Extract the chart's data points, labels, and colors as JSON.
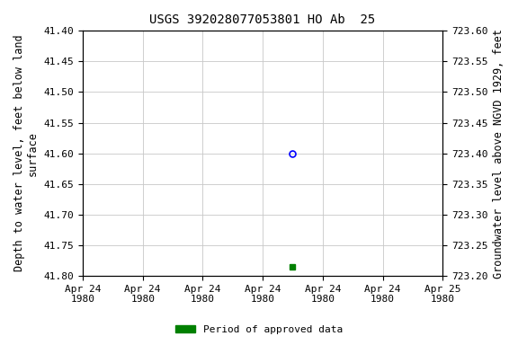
{
  "title": "USGS 392028077053801 HO Ab  25",
  "ylabel_left": "Depth to water level, feet below land\nsurface",
  "ylabel_right": "Groundwater level above NGVD 1929, feet",
  "ylim_left": [
    41.8,
    41.4
  ],
  "ylim_right": [
    723.2,
    723.6
  ],
  "yticks_left": [
    41.4,
    41.45,
    41.5,
    41.55,
    41.6,
    41.65,
    41.7,
    41.75,
    41.8
  ],
  "yticks_right": [
    723.6,
    723.55,
    723.5,
    723.45,
    723.4,
    723.35,
    723.3,
    723.25,
    723.2
  ],
  "data_point_x": 3.5,
  "data_point_y_depth": 41.6,
  "data_point_color": "#0000ff",
  "data_point_marker": "o",
  "data_point_markersize": 5,
  "approved_point_x": 3.5,
  "approved_point_y_depth": 41.785,
  "approved_point_color": "#008000",
  "approved_point_marker": "s",
  "approved_point_markersize": 4,
  "xlim": [
    0,
    6
  ],
  "xtick_positions": [
    0,
    1,
    2,
    3,
    4,
    5,
    6
  ],
  "xtick_labels": [
    "Apr 24\n1980",
    "Apr 24\n1980",
    "Apr 24\n1980",
    "Apr 24\n1980",
    "Apr 24\n1980",
    "Apr 24\n1980",
    "Apr 25\n1980"
  ],
  "grid_color": "#c8c8c8",
  "grid_linewidth": 0.6,
  "background_color": "#ffffff",
  "legend_label": "Period of approved data",
  "legend_color": "#008000",
  "font_family": "monospace",
  "title_fontsize": 10,
  "label_fontsize": 8.5,
  "tick_fontsize": 8
}
